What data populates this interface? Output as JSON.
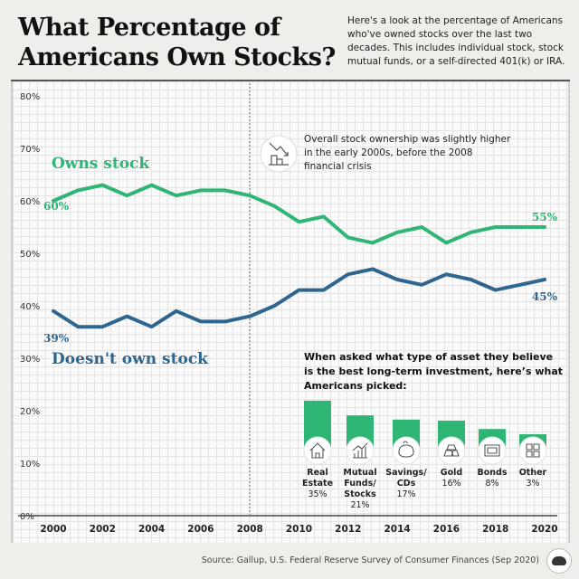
{
  "title": "What Percentage of Americans Own Stocks?",
  "subtitle": "Here's a look at the percentage of Americans who've owned stocks over the last two decades. This includes individual stock, stock mutual funds, or a self-directed 401(k) or IRA.",
  "source": "Source: Gallup, U.S. Federal Reserve Survey of Consumer Finances (Sep 2020)",
  "colors": {
    "owns": "#2fb574",
    "doesnt": "#2e6690",
    "bar": "#2fb574"
  },
  "chart_data": [
    {
      "type": "line",
      "x": [
        2000,
        2001,
        2002,
        2003,
        2004,
        2005,
        2006,
        2007,
        2008,
        2009,
        2010,
        2011,
        2012,
        2013,
        2014,
        2015,
        2016,
        2017,
        2018,
        2019,
        2020
      ],
      "series": [
        {
          "name": "Owns stock",
          "values": [
            60,
            62,
            63,
            61,
            63,
            61,
            62,
            62,
            61,
            59,
            56,
            57,
            53,
            52,
            54,
            55,
            52,
            54,
            55,
            55,
            55
          ],
          "start_label": "60%",
          "end_label": "55%"
        },
        {
          "name": "Doesn't own stock",
          "values": [
            39,
            36,
            36,
            38,
            36,
            39,
            37,
            37,
            38,
            40,
            43,
            43,
            46,
            47,
            45,
            44,
            46,
            45,
            43,
            44,
            45
          ],
          "start_label": "39%",
          "end_label": "45%"
        }
      ],
      "ylim": [
        0,
        80
      ],
      "yticks": [
        "0%",
        "10%",
        "20%",
        "30%",
        "40%",
        "50%",
        "60%",
        "70%",
        "80%"
      ],
      "xticks": [
        "2000",
        "2002",
        "2004",
        "2006",
        "2008",
        "2010",
        "2012",
        "2014",
        "2016",
        "2018",
        "2020"
      ],
      "grid": true,
      "annotation": "Overall stock ownership was slightly higher in the early 2000s, before the 2008 financial crisis",
      "annotation_icon": "falling-chart-icon",
      "marker_year": 2008
    },
    {
      "type": "bar",
      "title": "When asked what type of asset they believe is the best long-term investment, here's what Americans picked:",
      "categories": [
        "Real Estate",
        "Mutual Funds/ Stocks",
        "Savings/ CDs",
        "Gold",
        "Bonds",
        "Other"
      ],
      "label_lines": [
        [
          "Real",
          "Estate"
        ],
        [
          "Mutual",
          "Funds/",
          "Stocks"
        ],
        [
          "Savings/",
          "CDs"
        ],
        [
          "Gold"
        ],
        [
          "Bonds"
        ],
        [
          "Other"
        ]
      ],
      "value_labels": [
        "35%",
        "21%",
        "17%",
        "16%",
        "8%",
        "3%"
      ],
      "values": [
        35,
        21,
        17,
        16,
        8,
        3
      ],
      "icons": [
        "house-icon",
        "growth-chart-icon",
        "piggy-bank-icon",
        "gold-bars-icon",
        "bond-certificate-icon",
        "grid-icon"
      ]
    }
  ]
}
